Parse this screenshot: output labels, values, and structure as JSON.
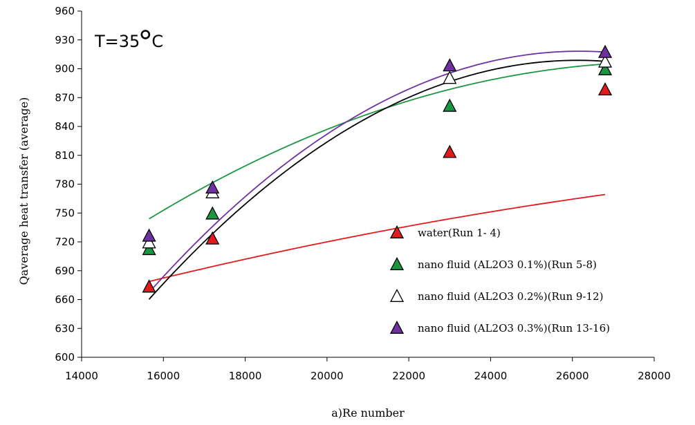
{
  "chart_data": {
    "type": "scatter",
    "title": "",
    "annotation": "T=35",
    "annotation_unit": "C",
    "xlabel": "a)Re number",
    "ylabel": "Qaverage heat transfer  (average)",
    "xlim": [
      14000,
      28000
    ],
    "ylim": [
      600,
      960
    ],
    "xticks": [
      14000,
      16000,
      18000,
      20000,
      22000,
      24000,
      26000,
      28000
    ],
    "yticks": [
      600,
      630,
      660,
      690,
      720,
      750,
      780,
      810,
      840,
      870,
      900,
      930,
      960
    ],
    "grid": false,
    "legend_position": "bottom-right",
    "series": [
      {
        "name": "water(Run 1- 4)",
        "marker": "filled-triangle",
        "fill": "#e31a1c",
        "line_color": "#e31a1c",
        "x": [
          15650,
          17200,
          23000,
          26800
        ],
        "y": [
          673,
          723,
          813,
          878
        ],
        "trend": [
          -2e-07,
          0.0166,
          468
        ]
      },
      {
        "name": "nano fluid (AL2O3 0.1%)(Run 5-8)",
        "marker": "filled-triangle",
        "fill": "#1a9641",
        "line_color": "#1a9641",
        "x": [
          15650,
          17200,
          23000,
          26800
        ],
        "y": [
          712,
          749,
          861,
          899
        ],
        "trend": [
          -1.019e-06,
          0.0577,
          90.5
        ]
      },
      {
        "name": "nano fluid (AL2O3 0.2%)(Run 9-12)",
        "marker": "open-triangle",
        "fill": "#ffffff",
        "line_color": "#000000",
        "x": [
          15650,
          17200,
          23000,
          26800
        ],
        "y": [
          719,
          771,
          890,
          907
        ],
        "trend": [
          -2.264e-06,
          0.1183,
          -636.6
        ]
      },
      {
        "name": "nano fluid (AL2O3 0.3%)(Run 13-16)",
        "marker": "filled-triangle",
        "fill": "#7030a0",
        "line_color": "#7030a0",
        "x": [
          15650,
          17200,
          23000,
          26800
        ],
        "y": [
          726,
          776,
          903,
          917
        ],
        "trend": [
          -2.266e-06,
          0.1186,
          -633.6
        ]
      }
    ]
  }
}
